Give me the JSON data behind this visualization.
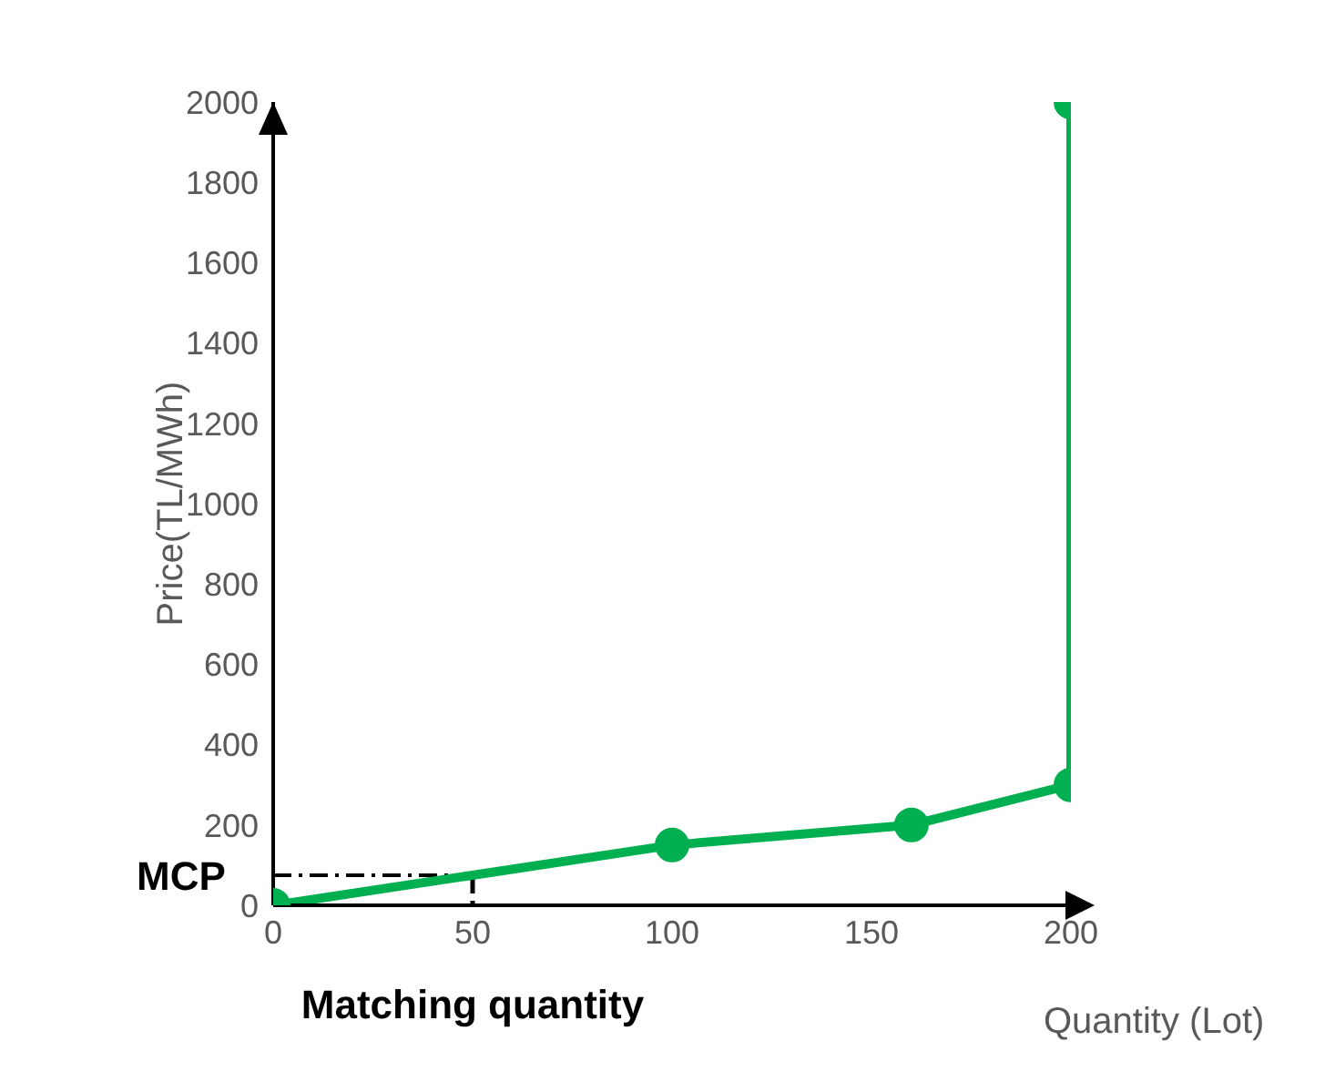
{
  "chart_data": {
    "type": "line",
    "xlabel": "Quantity (Lot)",
    "ylabel": "Price(TL/MWh)",
    "x": [
      0,
      100,
      160,
      200,
      200
    ],
    "series": [
      {
        "color": "#00b050",
        "values": [
          0,
          150,
          200,
          300,
          2000
        ]
      }
    ],
    "xlim": [
      0,
      200
    ],
    "xticks": [
      0,
      50,
      100,
      150,
      200
    ],
    "ylim": [
      0,
      2000
    ],
    "yticks": [
      0,
      200,
      400,
      600,
      800,
      1000,
      1200,
      1400,
      1600,
      1800,
      2000
    ],
    "ref_lines": [
      {
        "axis": "y",
        "value": 75,
        "label": "MCP",
        "color": "#000000",
        "line_style": "dashed"
      }
    ],
    "annotations": [
      {
        "text": "Matching quantity",
        "x": 50,
        "y": 75
      }
    ],
    "grid": false,
    "legend": false,
    "marker": "circle",
    "line_style": "solid"
  }
}
